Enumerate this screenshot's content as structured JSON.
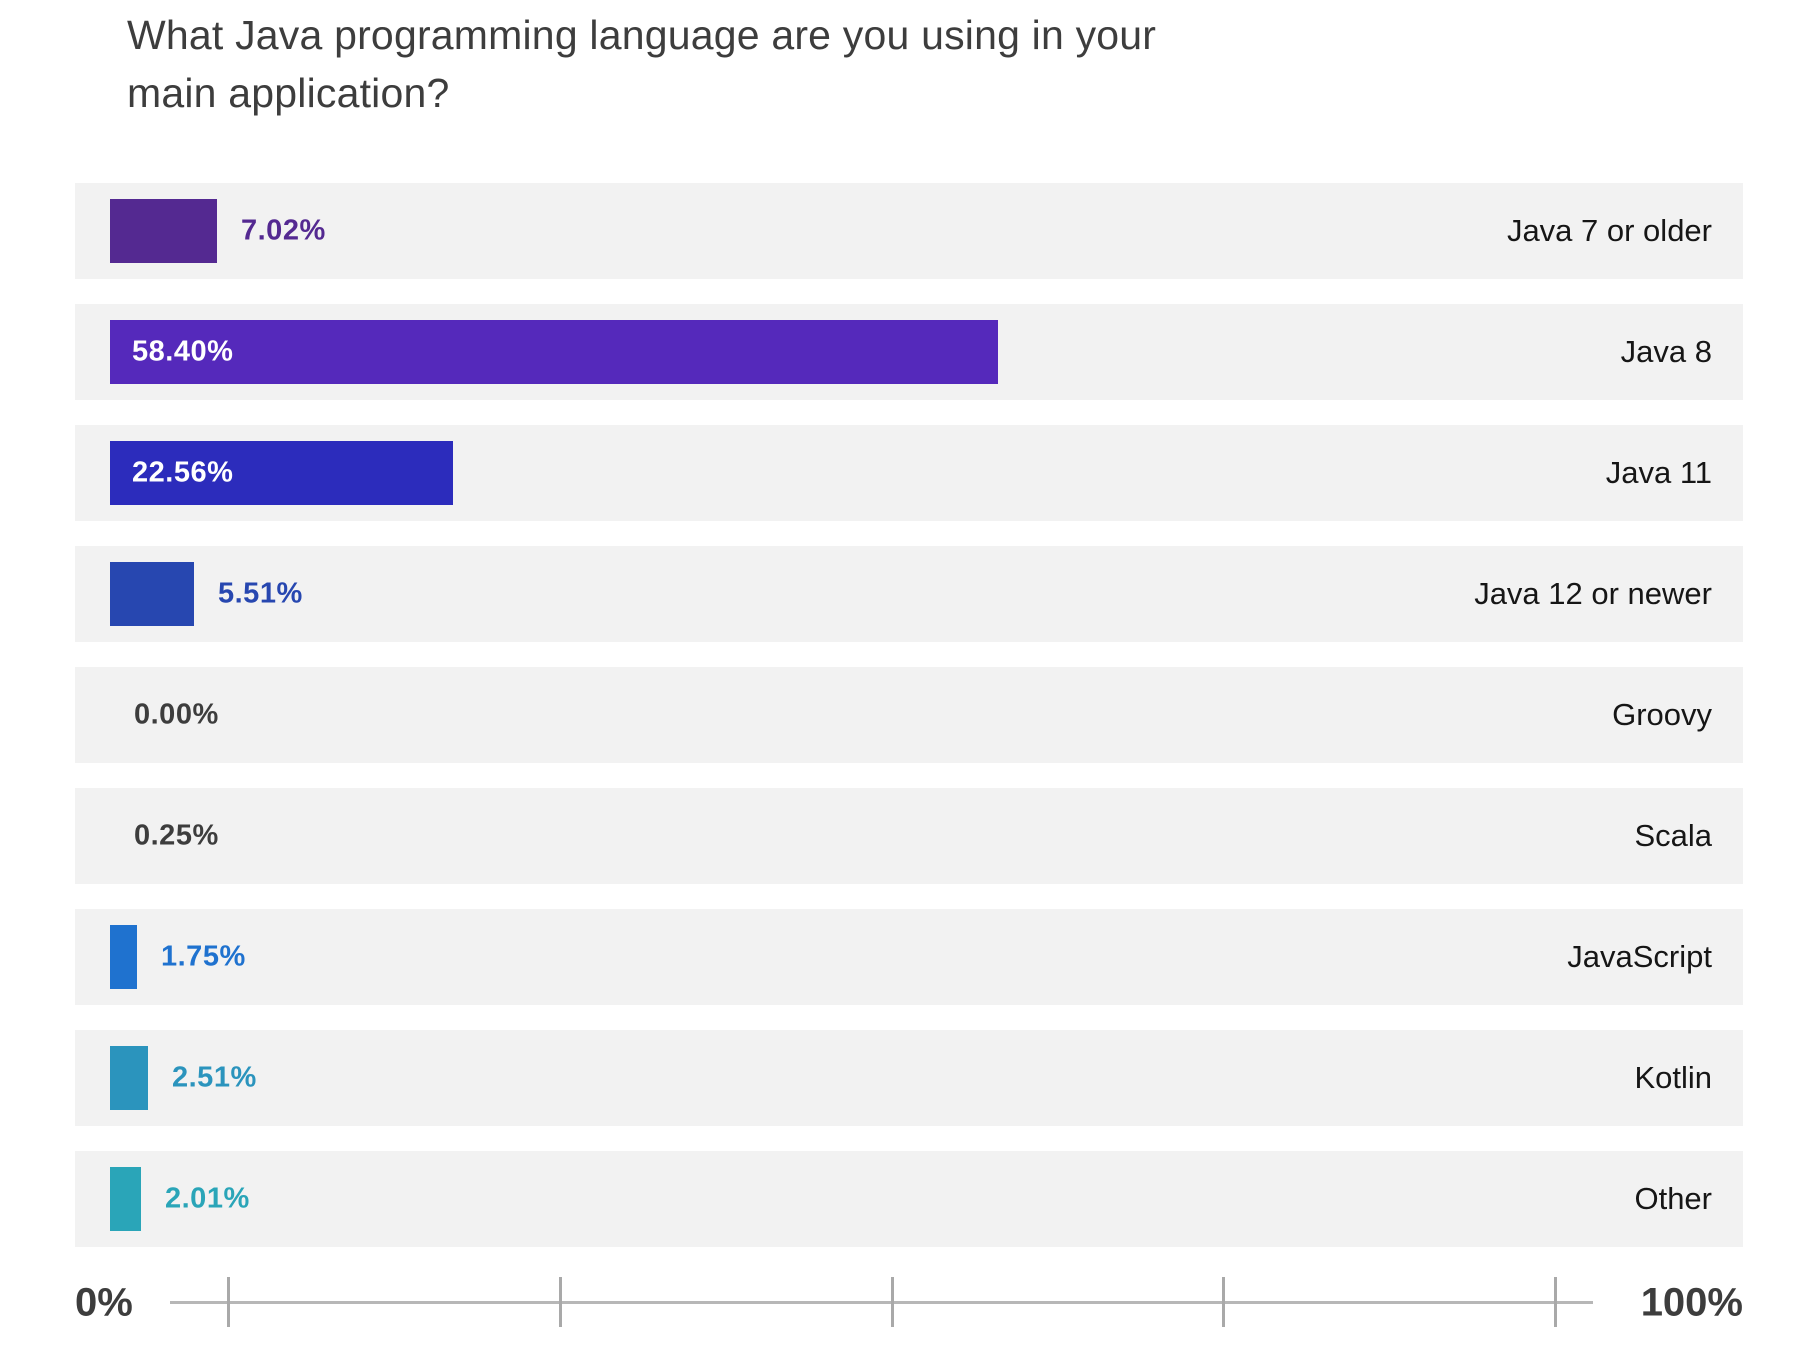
{
  "title": "What Java programming language are you using in your main application?",
  "axis": {
    "min_label": "0%",
    "max_label": "100%",
    "tick_count": 5
  },
  "colors": {
    "row_background": "#f2f2f2",
    "title_text": "#3d3d3d",
    "category_text": "#161616",
    "inside_value_text": "#ffffff",
    "axis_line": "#b7b7b7",
    "axis_tick": "#a9a9a9",
    "axis_text": "#3d3d3d"
  },
  "chart_data": {
    "type": "bar",
    "orientation": "horizontal",
    "title": "What Java programming language are you using in your main application?",
    "categories": [
      "Java 7 or older",
      "Java 8",
      "Java 11",
      "Java 12 or newer",
      "Groovy",
      "Scala",
      "JavaScript",
      "Kotlin",
      "Other"
    ],
    "values": [
      7.02,
      58.4,
      22.56,
      5.51,
      0.0,
      0.25,
      1.75,
      2.51,
      2.01
    ],
    "value_labels": [
      "7.02%",
      "58.40%",
      "22.56%",
      "5.51%",
      "0.00%",
      "0.25%",
      "1.75%",
      "2.51%",
      "2.01%"
    ],
    "bar_colors": [
      "#542991",
      "#5529bb",
      "#2c2cbc",
      "#2747b0",
      "#3d3d3d",
      "#3d3d3d",
      "#1f72cf",
      "#2b94bd",
      "#2aa5b8"
    ],
    "xlabel": "",
    "ylabel": "",
    "xlim": [
      0,
      100
    ],
    "xtick_labels": [
      "0%",
      "100%"
    ],
    "grid": false,
    "legend": false
  }
}
